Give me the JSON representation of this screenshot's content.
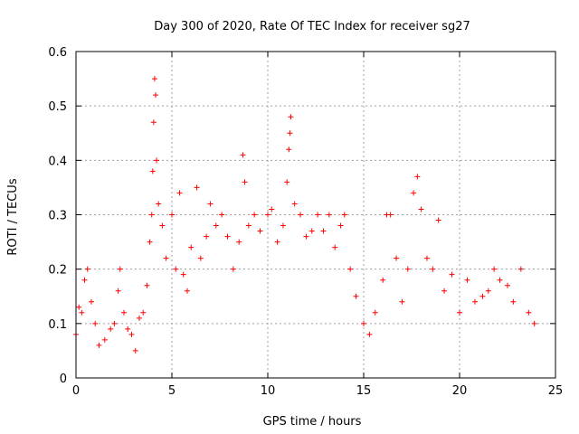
{
  "chart_data": {
    "type": "scatter",
    "title": "Day 300 of 2020, Rate Of TEC Index for receiver sg27",
    "xlabel": "GPS time / hours",
    "ylabel": "ROTI / TECUs",
    "xlim": [
      0,
      25
    ],
    "ylim": [
      0,
      0.6
    ],
    "x_ticks": [
      "0",
      "5",
      "10",
      "15",
      "20",
      "25"
    ],
    "y_ticks": [
      "0",
      "0.1",
      "0.2",
      "0.3",
      "0.4",
      "0.5",
      "0.6"
    ],
    "grid": true,
    "marker": "+",
    "color": "#ff0000",
    "series": [
      {
        "points": [
          [
            0.0,
            0.08
          ],
          [
            0.15,
            0.13
          ],
          [
            0.3,
            0.12
          ],
          [
            0.45,
            0.18
          ],
          [
            0.6,
            0.2
          ],
          [
            0.8,
            0.14
          ],
          [
            1.0,
            0.1
          ],
          [
            1.2,
            0.06
          ],
          [
            1.5,
            0.07
          ],
          [
            1.8,
            0.09
          ],
          [
            2.0,
            0.1
          ],
          [
            2.2,
            0.16
          ],
          [
            2.3,
            0.2
          ],
          [
            2.5,
            0.12
          ],
          [
            2.7,
            0.09
          ],
          [
            2.9,
            0.08
          ],
          [
            3.1,
            0.05
          ],
          [
            3.3,
            0.11
          ],
          [
            3.5,
            0.12
          ],
          [
            3.7,
            0.17
          ],
          [
            3.85,
            0.25
          ],
          [
            3.95,
            0.3
          ],
          [
            4.0,
            0.38
          ],
          [
            4.05,
            0.47
          ],
          [
            4.1,
            0.55
          ],
          [
            4.15,
            0.52
          ],
          [
            4.2,
            0.4
          ],
          [
            4.3,
            0.32
          ],
          [
            4.5,
            0.28
          ],
          [
            4.7,
            0.22
          ],
          [
            5.0,
            0.3
          ],
          [
            5.2,
            0.2
          ],
          [
            5.4,
            0.34
          ],
          [
            5.6,
            0.19
          ],
          [
            5.8,
            0.16
          ],
          [
            6.0,
            0.24
          ],
          [
            6.3,
            0.35
          ],
          [
            6.5,
            0.22
          ],
          [
            6.8,
            0.26
          ],
          [
            7.0,
            0.32
          ],
          [
            7.3,
            0.28
          ],
          [
            7.6,
            0.3
          ],
          [
            7.9,
            0.26
          ],
          [
            8.2,
            0.2
          ],
          [
            8.5,
            0.25
          ],
          [
            8.7,
            0.41
          ],
          [
            8.8,
            0.36
          ],
          [
            9.0,
            0.28
          ],
          [
            9.3,
            0.3
          ],
          [
            9.6,
            0.27
          ],
          [
            10.0,
            0.3
          ],
          [
            10.2,
            0.31
          ],
          [
            10.5,
            0.25
          ],
          [
            10.8,
            0.28
          ],
          [
            11.0,
            0.36
          ],
          [
            11.1,
            0.42
          ],
          [
            11.15,
            0.45
          ],
          [
            11.2,
            0.48
          ],
          [
            11.4,
            0.32
          ],
          [
            11.7,
            0.3
          ],
          [
            12.0,
            0.26
          ],
          [
            12.3,
            0.27
          ],
          [
            12.6,
            0.3
          ],
          [
            12.9,
            0.27
          ],
          [
            13.2,
            0.3
          ],
          [
            13.5,
            0.24
          ],
          [
            13.8,
            0.28
          ],
          [
            14.0,
            0.3
          ],
          [
            14.3,
            0.2
          ],
          [
            14.6,
            0.15
          ],
          [
            15.0,
            0.1
          ],
          [
            15.3,
            0.08
          ],
          [
            15.6,
            0.12
          ],
          [
            16.0,
            0.18
          ],
          [
            16.2,
            0.3
          ],
          [
            16.4,
            0.3
          ],
          [
            16.7,
            0.22
          ],
          [
            17.0,
            0.14
          ],
          [
            17.3,
            0.2
          ],
          [
            17.6,
            0.34
          ],
          [
            17.8,
            0.37
          ],
          [
            18.0,
            0.31
          ],
          [
            18.3,
            0.22
          ],
          [
            18.6,
            0.2
          ],
          [
            18.9,
            0.29
          ],
          [
            19.2,
            0.16
          ],
          [
            19.6,
            0.19
          ],
          [
            20.0,
            0.12
          ],
          [
            20.4,
            0.18
          ],
          [
            20.8,
            0.14
          ],
          [
            21.2,
            0.15
          ],
          [
            21.5,
            0.16
          ],
          [
            21.8,
            0.2
          ],
          [
            22.1,
            0.18
          ],
          [
            22.5,
            0.17
          ],
          [
            22.8,
            0.14
          ],
          [
            23.2,
            0.2
          ],
          [
            23.6,
            0.12
          ],
          [
            23.9,
            0.1
          ]
        ]
      }
    ]
  }
}
